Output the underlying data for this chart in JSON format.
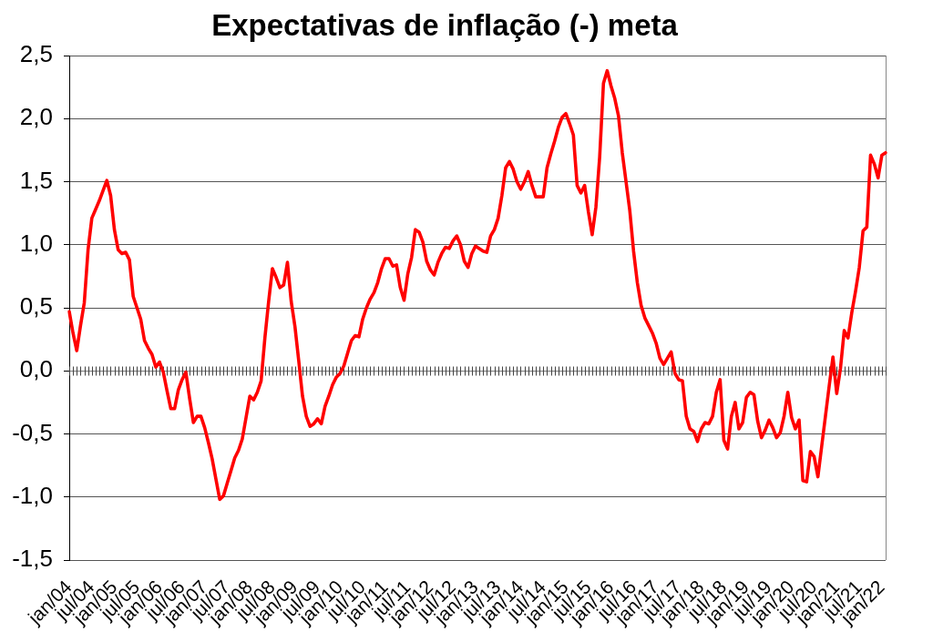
{
  "chart_data": {
    "type": "line",
    "title": "Expectativas de inflação (-) meta",
    "categories": [
      "jan/04",
      null,
      null,
      null,
      null,
      null,
      "jul/04",
      null,
      null,
      null,
      null,
      null,
      "jan/05",
      null,
      null,
      null,
      null,
      null,
      "jul/05",
      null,
      null,
      null,
      null,
      null,
      "jan/06",
      null,
      null,
      null,
      null,
      null,
      "jul/06",
      null,
      null,
      null,
      null,
      null,
      "jan/07",
      null,
      null,
      null,
      null,
      null,
      "jul/07",
      null,
      null,
      null,
      null,
      null,
      "jan/08",
      null,
      null,
      null,
      null,
      null,
      "jul/08",
      null,
      null,
      null,
      null,
      null,
      "jan/09",
      null,
      null,
      null,
      null,
      null,
      "jul/09",
      null,
      null,
      null,
      null,
      null,
      "jan/10",
      null,
      null,
      null,
      null,
      null,
      "jul/10",
      null,
      null,
      null,
      null,
      null,
      "jan/11",
      null,
      null,
      null,
      null,
      null,
      "jul/11",
      null,
      null,
      null,
      null,
      null,
      "jan/12",
      null,
      null,
      null,
      null,
      null,
      "jul/12",
      null,
      null,
      null,
      null,
      null,
      "jan/13",
      null,
      null,
      null,
      null,
      null,
      "jul/13",
      null,
      null,
      null,
      null,
      null,
      "jan/14",
      null,
      null,
      null,
      null,
      null,
      "jul/14",
      null,
      null,
      null,
      null,
      null,
      "jan/15",
      null,
      null,
      null,
      null,
      null,
      "jul/15",
      null,
      null,
      null,
      null,
      null,
      "jan/16",
      null,
      null,
      null,
      null,
      null,
      "jul/16",
      null,
      null,
      null,
      null,
      null,
      "jan/17",
      null,
      null,
      null,
      null,
      null,
      "jul/17",
      null,
      null,
      null,
      null,
      null,
      "jan/18",
      null,
      null,
      null,
      null,
      null,
      "jul/18",
      null,
      null,
      null,
      null,
      null,
      "jan/19",
      null,
      null,
      null,
      null,
      null,
      "jul/19",
      null,
      null,
      null,
      null,
      null,
      "jan/20",
      null,
      null,
      null,
      null,
      null,
      "jul/20",
      null,
      null,
      null,
      null,
      null,
      "jan/21",
      null,
      null,
      null,
      null,
      null,
      "jul/21",
      null,
      null,
      null,
      null,
      null,
      "jan/22",
      null
    ],
    "values": [
      0.47,
      0.3,
      0.16,
      0.36,
      0.54,
      0.96,
      1.21,
      1.28,
      1.35,
      1.43,
      1.51,
      1.39,
      1.12,
      0.96,
      0.93,
      0.94,
      0.88,
      0.59,
      0.5,
      0.41,
      0.24,
      0.18,
      0.13,
      0.03,
      0.07,
      -0.01,
      -0.16,
      -0.3,
      -0.3,
      -0.15,
      -0.07,
      -0.01,
      -0.22,
      -0.41,
      -0.36,
      -0.36,
      -0.45,
      -0.57,
      -0.7,
      -0.86,
      -1.02,
      -0.99,
      -0.89,
      -0.79,
      -0.69,
      -0.63,
      -0.54,
      -0.37,
      -0.2,
      -0.23,
      -0.17,
      -0.08,
      0.26,
      0.55,
      0.81,
      0.74,
      0.66,
      0.68,
      0.86,
      0.55,
      0.35,
      0.08,
      -0.2,
      -0.36,
      -0.44,
      -0.42,
      -0.38,
      -0.42,
      -0.28,
      -0.2,
      -0.11,
      -0.05,
      -0.02,
      0.04,
      0.14,
      0.24,
      0.28,
      0.27,
      0.41,
      0.5,
      0.57,
      0.62,
      0.7,
      0.81,
      0.89,
      0.89,
      0.83,
      0.84,
      0.66,
      0.56,
      0.77,
      0.9,
      1.12,
      1.1,
      1.02,
      0.87,
      0.8,
      0.76,
      0.86,
      0.93,
      0.98,
      0.97,
      1.03,
      1.07,
      1.0,
      0.87,
      0.82,
      0.93,
      0.99,
      0.97,
      0.95,
      0.94,
      1.07,
      1.12,
      1.21,
      1.39,
      1.61,
      1.66,
      1.6,
      1.5,
      1.44,
      1.5,
      1.58,
      1.47,
      1.38,
      1.38,
      1.38,
      1.61,
      1.72,
      1.82,
      1.93,
      2.01,
      2.04,
      1.96,
      1.87,
      1.47,
      1.41,
      1.47,
      1.26,
      1.08,
      1.3,
      1.7,
      2.28,
      2.38,
      2.26,
      2.16,
      2.02,
      1.73,
      1.5,
      1.27,
      0.95,
      0.7,
      0.52,
      0.42,
      0.36,
      0.3,
      0.22,
      0.1,
      0.05,
      0.1,
      0.15,
      -0.02,
      -0.07,
      -0.08,
      -0.36,
      -0.46,
      -0.48,
      -0.56,
      -0.46,
      -0.41,
      -0.42,
      -0.36,
      -0.17,
      -0.07,
      -0.55,
      -0.62,
      -0.36,
      -0.25,
      -0.46,
      -0.41,
      -0.21,
      -0.17,
      -0.19,
      -0.4,
      -0.53,
      -0.47,
      -0.39,
      -0.45,
      -0.53,
      -0.49,
      -0.36,
      -0.17,
      -0.37,
      -0.46,
      -0.39,
      -0.87,
      -0.88,
      -0.64,
      -0.68,
      -0.84,
      -0.6,
      -0.36,
      -0.12,
      0.11,
      -0.18,
      0.02,
      0.32,
      0.26,
      0.46,
      0.63,
      0.82,
      1.11,
      1.14,
      1.71,
      1.64,
      1.53,
      1.71,
      1.73
    ],
    "color": "#ff0000",
    "ylim": [
      -1.5,
      2.5
    ],
    "yticks": [
      {
        "value": -1.5,
        "label": "-1,5"
      },
      {
        "value": -1,
        "label": "-1,0"
      },
      {
        "value": -0.5,
        "label": "-0,5"
      },
      {
        "value": 0,
        "label": "0,0"
      },
      {
        "value": 0.5,
        "label": "0,5"
      },
      {
        "value": 1,
        "label": "1,0"
      },
      {
        "value": 1.5,
        "label": "1,5"
      },
      {
        "value": 2,
        "label": "2,0"
      },
      {
        "value": 2.5,
        "label": "2,5"
      }
    ],
    "grid": "y",
    "marker": "none",
    "line_style": "solid"
  }
}
